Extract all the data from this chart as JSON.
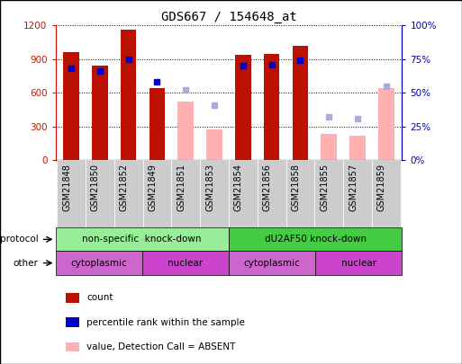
{
  "title": "GDS667 / 154648_at",
  "samples": [
    "GSM21848",
    "GSM21850",
    "GSM21852",
    "GSM21849",
    "GSM21851",
    "GSM21853",
    "GSM21854",
    "GSM21856",
    "GSM21858",
    "GSM21855",
    "GSM21857",
    "GSM21859"
  ],
  "count_values": [
    960,
    840,
    1160,
    640,
    null,
    null,
    940,
    950,
    1020,
    null,
    null,
    null
  ],
  "count_absent": [
    null,
    null,
    null,
    null,
    520,
    270,
    null,
    null,
    null,
    230,
    220,
    640
  ],
  "rank_present_pct": [
    68,
    66,
    75,
    58,
    null,
    null,
    70,
    71,
    74,
    null,
    null,
    null
  ],
  "rank_absent_pct": [
    null,
    null,
    null,
    null,
    52,
    41,
    null,
    null,
    null,
    32,
    31,
    55
  ],
  "left_ylim": [
    0,
    1200
  ],
  "right_ylim": [
    0,
    100
  ],
  "left_yticks": [
    0,
    300,
    600,
    900,
    1200
  ],
  "right_yticks": [
    0,
    25,
    50,
    75,
    100
  ],
  "right_yticklabels": [
    "0%",
    "25%",
    "50%",
    "75%",
    "100%"
  ],
  "protocol_groups": [
    {
      "label": "non-specific  knock-down",
      "start": 0,
      "end": 6,
      "color": "#98EE98"
    },
    {
      "label": "dU2AF50 knock-down",
      "start": 6,
      "end": 12,
      "color": "#44CC44"
    }
  ],
  "other_groups": [
    {
      "label": "cytoplasmic",
      "start": 0,
      "end": 3,
      "color": "#CC66CC"
    },
    {
      "label": "nuclear",
      "start": 3,
      "end": 6,
      "color": "#CC44CC"
    },
    {
      "label": "cytoplasmic",
      "start": 6,
      "end": 9,
      "color": "#CC66CC"
    },
    {
      "label": "nuclear",
      "start": 9,
      "end": 12,
      "color": "#CC44CC"
    }
  ],
  "count_color": "#BB1100",
  "rank_color": "#0000CC",
  "count_absent_color": "#FFB0B0",
  "rank_absent_color": "#AAAADD",
  "axis_label_color_left": "#CC1100",
  "axis_label_color_right": "#0000BB",
  "xtick_bg_color": "#CCCCCC"
}
